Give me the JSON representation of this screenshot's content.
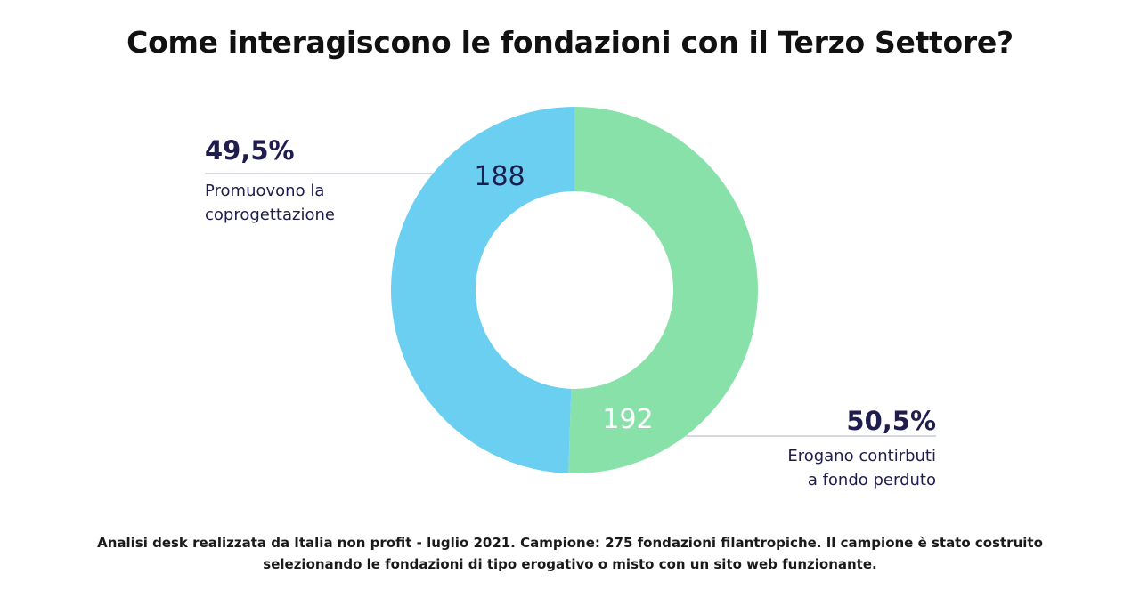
{
  "chart_data": {
    "type": "pie",
    "title": "Come interagiscono le fondazioni con il Terzo Settore?",
    "donut": true,
    "segments": [
      {
        "label_line1": "Promuovono la",
        "label_line2": "coprogettazione",
        "value": 188,
        "value_label": "188",
        "percent_label": "49,5%",
        "color": "#6ACFF1",
        "value_text_color": "#1f1d4d"
      },
      {
        "label_line1": "Erogano contirbuti",
        "label_line2": "a fondo perduto",
        "value": 192,
        "value_label": "192",
        "percent_label": "50,5%",
        "color": "#87E1A9",
        "value_text_color": "#ffffff"
      }
    ],
    "leader_line_color": "#d8d8e0"
  },
  "footnote": {
    "line1": "Analisi desk realizzata da Italia non profit - luglio 2021. Campione: 275 fondazioni filantropiche. Il campione è stato costruito",
    "line2": "selezionando le fondazioni di tipo erogativo o misto con un sito web funzionante."
  }
}
